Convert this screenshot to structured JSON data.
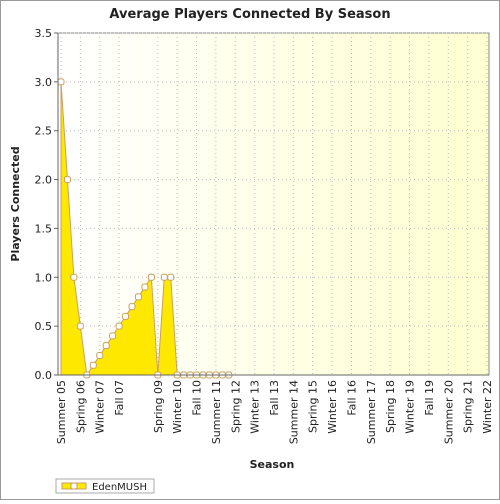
{
  "chart_data": {
    "type": "area",
    "title": "Average Players Connected By Season",
    "x_label": "Season",
    "y_label": "Players Connected",
    "categories": [
      "Summer 05",
      null,
      null,
      "Spring 06",
      null,
      null,
      "Winter 07",
      null,
      null,
      "Fall 07",
      null,
      null,
      null,
      null,
      null,
      "Spring 09",
      null,
      null,
      "Winter 10",
      null,
      null,
      "Fall 10",
      null,
      null,
      "Summer 11",
      null,
      null,
      "Spring 12",
      null,
      null,
      "Winter 13",
      null,
      null,
      "Fall 13",
      null,
      null,
      "Summer 14",
      null,
      null,
      "Spring 15",
      null,
      null,
      "Winter 16",
      null,
      null,
      "Fall 16",
      null,
      null,
      "Summer 17",
      null,
      null,
      "Spring 18",
      null,
      null,
      "Winter 19",
      null,
      null,
      "Fall 19",
      null,
      null,
      "Summer 20",
      null,
      null,
      "Spring 21",
      null,
      null,
      "Winter 22"
    ],
    "series": [
      {
        "name": "EdenMUSH",
        "color": "#ffe800",
        "values": [
          3,
          2,
          1,
          0.5,
          0,
          0.1,
          0.2,
          0.3,
          0.4,
          0.5,
          0.6,
          0.7,
          0.8,
          0.9,
          1,
          0,
          1,
          1,
          0,
          0,
          0,
          0,
          0,
          0,
          0,
          0,
          0,
          null,
          null,
          null,
          null,
          null,
          null,
          null,
          null,
          null,
          null,
          null,
          null,
          null,
          null,
          null,
          null,
          null,
          null,
          null,
          null,
          null,
          null,
          null,
          null,
          null,
          null,
          null,
          null,
          null,
          null,
          null,
          null,
          null,
          null,
          null,
          null,
          null,
          null,
          null,
          null
        ]
      }
    ],
    "ylim": [
      0,
      3.5
    ],
    "yticks": [
      {
        "value": 0,
        "label": "0.0"
      },
      {
        "value": 0.5,
        "label": "0.5"
      },
      {
        "value": 1,
        "label": "1.0"
      },
      {
        "value": 1.5,
        "label": "1.5"
      },
      {
        "value": 2,
        "label": "2.0"
      },
      {
        "value": 2.5,
        "label": "2.5"
      },
      {
        "value": 3,
        "label": "3.0"
      },
      {
        "value": 3.5,
        "label": "3.5"
      }
    ],
    "grid": true,
    "legend": "bottom-left"
  }
}
